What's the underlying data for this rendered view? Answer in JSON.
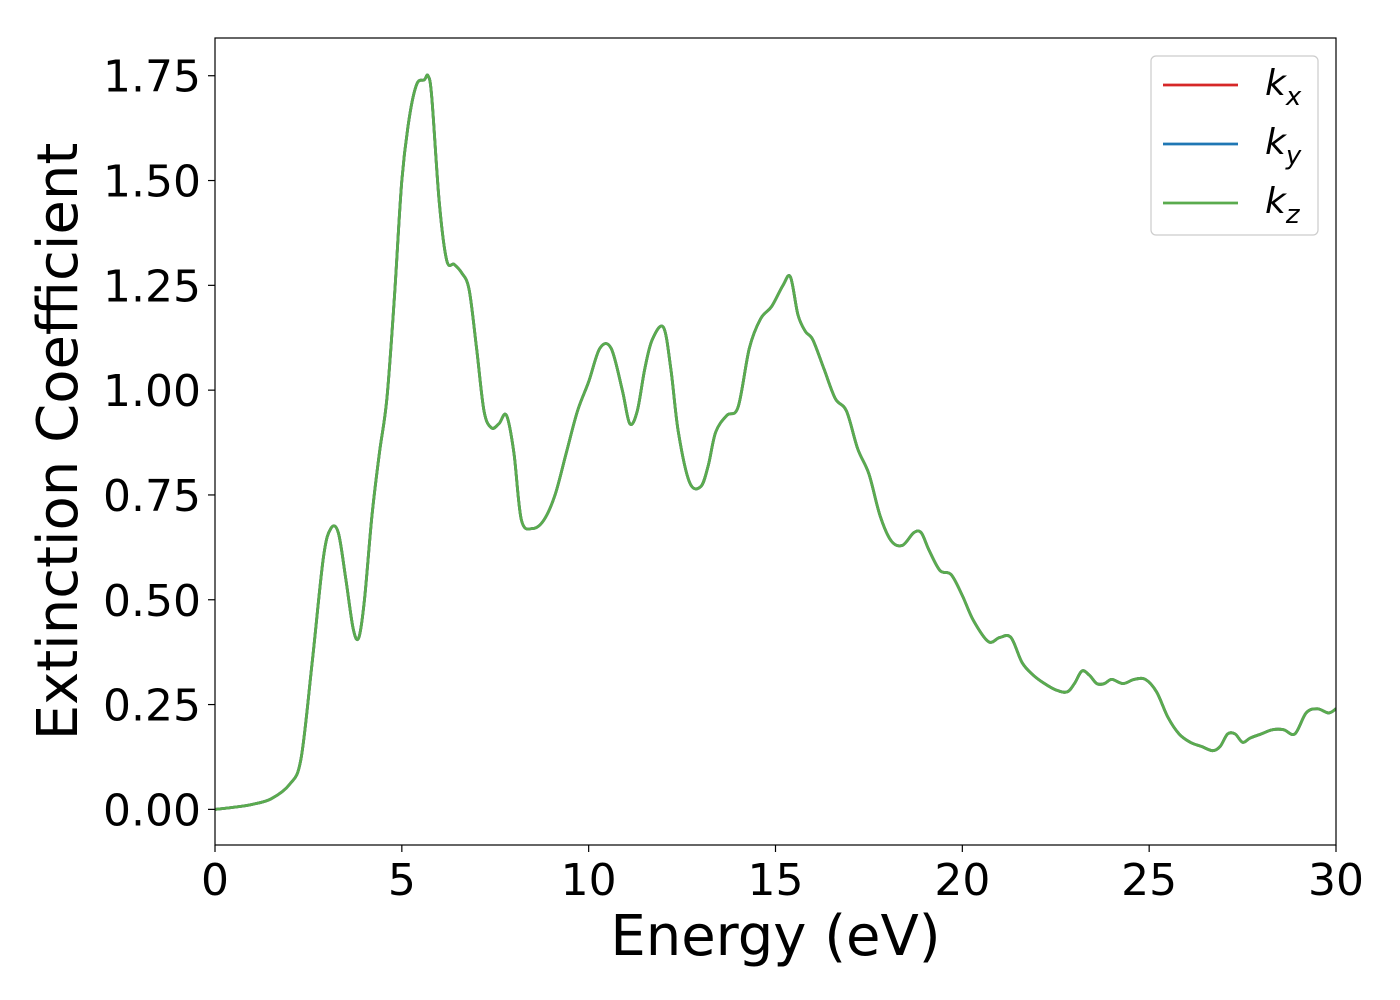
{
  "chart_data": {
    "type": "line",
    "title": "",
    "xlabel": "Energy (eV)",
    "ylabel": "Extinction Coefficient",
    "xlim": [
      0,
      30
    ],
    "ylim": [
      -0.085,
      1.84
    ],
    "grid": false,
    "legend_position": "top-right",
    "x_ticks": [
      {
        "value": 0,
        "label": "0"
      },
      {
        "value": 5,
        "label": "5"
      },
      {
        "value": 10,
        "label": "10"
      },
      {
        "value": 15,
        "label": "15"
      },
      {
        "value": 20,
        "label": "20"
      },
      {
        "value": 25,
        "label": "25"
      },
      {
        "value": 30,
        "label": "30"
      }
    ],
    "y_ticks": [
      {
        "value": 0.0,
        "label": "0.00"
      },
      {
        "value": 0.25,
        "label": "0.25"
      },
      {
        "value": 0.5,
        "label": "0.50"
      },
      {
        "value": 0.75,
        "label": "0.75"
      },
      {
        "value": 1.0,
        "label": "1.00"
      },
      {
        "value": 1.25,
        "label": "1.25"
      },
      {
        "value": 1.5,
        "label": "1.50"
      },
      {
        "value": 1.75,
        "label": "1.75"
      }
    ],
    "x": [
      0,
      0.5,
      1.0,
      1.5,
      2.0,
      2.3,
      2.6,
      2.9,
      3.1,
      3.3,
      3.5,
      3.7,
      3.85,
      4.0,
      4.2,
      4.4,
      4.6,
      4.8,
      5.0,
      5.2,
      5.4,
      5.6,
      5.7,
      5.8,
      6.0,
      6.2,
      6.4,
      6.6,
      6.8,
      7.0,
      7.2,
      7.4,
      7.6,
      7.8,
      8.0,
      8.2,
      8.5,
      8.8,
      9.1,
      9.4,
      9.7,
      10.0,
      10.3,
      10.6,
      10.9,
      11.1,
      11.3,
      11.5,
      11.7,
      12.0,
      12.2,
      12.4,
      12.7,
      13.0,
      13.2,
      13.4,
      13.7,
      14.0,
      14.3,
      14.6,
      14.9,
      15.2,
      15.4,
      15.6,
      15.8,
      16.0,
      16.3,
      16.6,
      16.9,
      17.2,
      17.5,
      17.8,
      18.1,
      18.4,
      18.7,
      18.9,
      19.1,
      19.4,
      19.7,
      20.0,
      20.3,
      20.7,
      21.0,
      21.3,
      21.6,
      21.9,
      22.2,
      22.5,
      22.8,
      23.0,
      23.2,
      23.4,
      23.6,
      23.8,
      24.0,
      24.3,
      24.6,
      24.9,
      25.2,
      25.5,
      25.8,
      26.1,
      26.4,
      26.7,
      26.9,
      27.1,
      27.3,
      27.5,
      27.7,
      28.0,
      28.3,
      28.6,
      28.9,
      29.2,
      29.5,
      29.8,
      30.0
    ],
    "series": [
      {
        "name": "k_x",
        "legend_main": "k",
        "legend_sub": "x",
        "color": "#d62728",
        "values": [
          0,
          0.005,
          0.012,
          0.025,
          0.06,
          0.12,
          0.35,
          0.6,
          0.67,
          0.66,
          0.55,
          0.43,
          0.41,
          0.5,
          0.7,
          0.85,
          0.98,
          1.22,
          1.5,
          1.65,
          1.73,
          1.74,
          1.75,
          1.7,
          1.45,
          1.31,
          1.3,
          1.28,
          1.24,
          1.1,
          0.95,
          0.91,
          0.92,
          0.94,
          0.85,
          0.69,
          0.67,
          0.69,
          0.75,
          0.85,
          0.95,
          1.02,
          1.1,
          1.1,
          1.0,
          0.92,
          0.95,
          1.05,
          1.12,
          1.15,
          1.05,
          0.9,
          0.78,
          0.77,
          0.82,
          0.9,
          0.94,
          0.96,
          1.1,
          1.17,
          1.2,
          1.25,
          1.27,
          1.18,
          1.14,
          1.12,
          1.05,
          0.98,
          0.95,
          0.86,
          0.8,
          0.7,
          0.64,
          0.63,
          0.66,
          0.66,
          0.62,
          0.57,
          0.56,
          0.51,
          0.45,
          0.4,
          0.41,
          0.41,
          0.35,
          0.32,
          0.3,
          0.285,
          0.28,
          0.3,
          0.33,
          0.32,
          0.3,
          0.3,
          0.31,
          0.3,
          0.31,
          0.31,
          0.28,
          0.22,
          0.18,
          0.16,
          0.15,
          0.14,
          0.15,
          0.18,
          0.18,
          0.16,
          0.17,
          0.18,
          0.19,
          0.19,
          0.18,
          0.23,
          0.24,
          0.23,
          0.24
        ]
      },
      {
        "name": "k_y",
        "legend_main": "k",
        "legend_sub": "y",
        "color": "#1f77b4",
        "values": [
          0,
          0.005,
          0.012,
          0.025,
          0.06,
          0.12,
          0.35,
          0.6,
          0.67,
          0.66,
          0.55,
          0.43,
          0.41,
          0.5,
          0.7,
          0.85,
          0.98,
          1.22,
          1.5,
          1.65,
          1.73,
          1.74,
          1.75,
          1.7,
          1.45,
          1.31,
          1.3,
          1.28,
          1.24,
          1.1,
          0.95,
          0.91,
          0.92,
          0.94,
          0.85,
          0.69,
          0.67,
          0.69,
          0.75,
          0.85,
          0.95,
          1.02,
          1.1,
          1.1,
          1.0,
          0.92,
          0.95,
          1.05,
          1.12,
          1.15,
          1.05,
          0.9,
          0.78,
          0.77,
          0.82,
          0.9,
          0.94,
          0.96,
          1.1,
          1.17,
          1.2,
          1.25,
          1.27,
          1.18,
          1.14,
          1.12,
          1.05,
          0.98,
          0.95,
          0.86,
          0.8,
          0.7,
          0.64,
          0.63,
          0.66,
          0.66,
          0.62,
          0.57,
          0.56,
          0.51,
          0.45,
          0.4,
          0.41,
          0.41,
          0.35,
          0.32,
          0.3,
          0.285,
          0.28,
          0.3,
          0.33,
          0.32,
          0.3,
          0.3,
          0.31,
          0.3,
          0.31,
          0.31,
          0.28,
          0.22,
          0.18,
          0.16,
          0.15,
          0.14,
          0.15,
          0.18,
          0.18,
          0.16,
          0.17,
          0.18,
          0.19,
          0.19,
          0.18,
          0.23,
          0.24,
          0.23,
          0.24
        ]
      },
      {
        "name": "k_z",
        "legend_main": "k",
        "legend_sub": "z",
        "color": "#5aab4e",
        "values": [
          0,
          0.005,
          0.012,
          0.025,
          0.06,
          0.12,
          0.35,
          0.6,
          0.67,
          0.66,
          0.55,
          0.43,
          0.41,
          0.5,
          0.7,
          0.85,
          0.98,
          1.22,
          1.5,
          1.65,
          1.73,
          1.74,
          1.75,
          1.7,
          1.45,
          1.31,
          1.3,
          1.28,
          1.24,
          1.1,
          0.95,
          0.91,
          0.92,
          0.94,
          0.85,
          0.69,
          0.67,
          0.69,
          0.75,
          0.85,
          0.95,
          1.02,
          1.1,
          1.1,
          1.0,
          0.92,
          0.95,
          1.05,
          1.12,
          1.15,
          1.05,
          0.9,
          0.78,
          0.77,
          0.82,
          0.9,
          0.94,
          0.96,
          1.1,
          1.17,
          1.2,
          1.25,
          1.27,
          1.18,
          1.14,
          1.12,
          1.05,
          0.98,
          0.95,
          0.86,
          0.8,
          0.7,
          0.64,
          0.63,
          0.66,
          0.66,
          0.62,
          0.57,
          0.56,
          0.51,
          0.45,
          0.4,
          0.41,
          0.41,
          0.35,
          0.32,
          0.3,
          0.285,
          0.28,
          0.3,
          0.33,
          0.32,
          0.3,
          0.3,
          0.31,
          0.3,
          0.31,
          0.31,
          0.28,
          0.22,
          0.18,
          0.16,
          0.15,
          0.14,
          0.15,
          0.18,
          0.18,
          0.16,
          0.17,
          0.18,
          0.19,
          0.19,
          0.18,
          0.23,
          0.24,
          0.23,
          0.24
        ]
      }
    ]
  }
}
